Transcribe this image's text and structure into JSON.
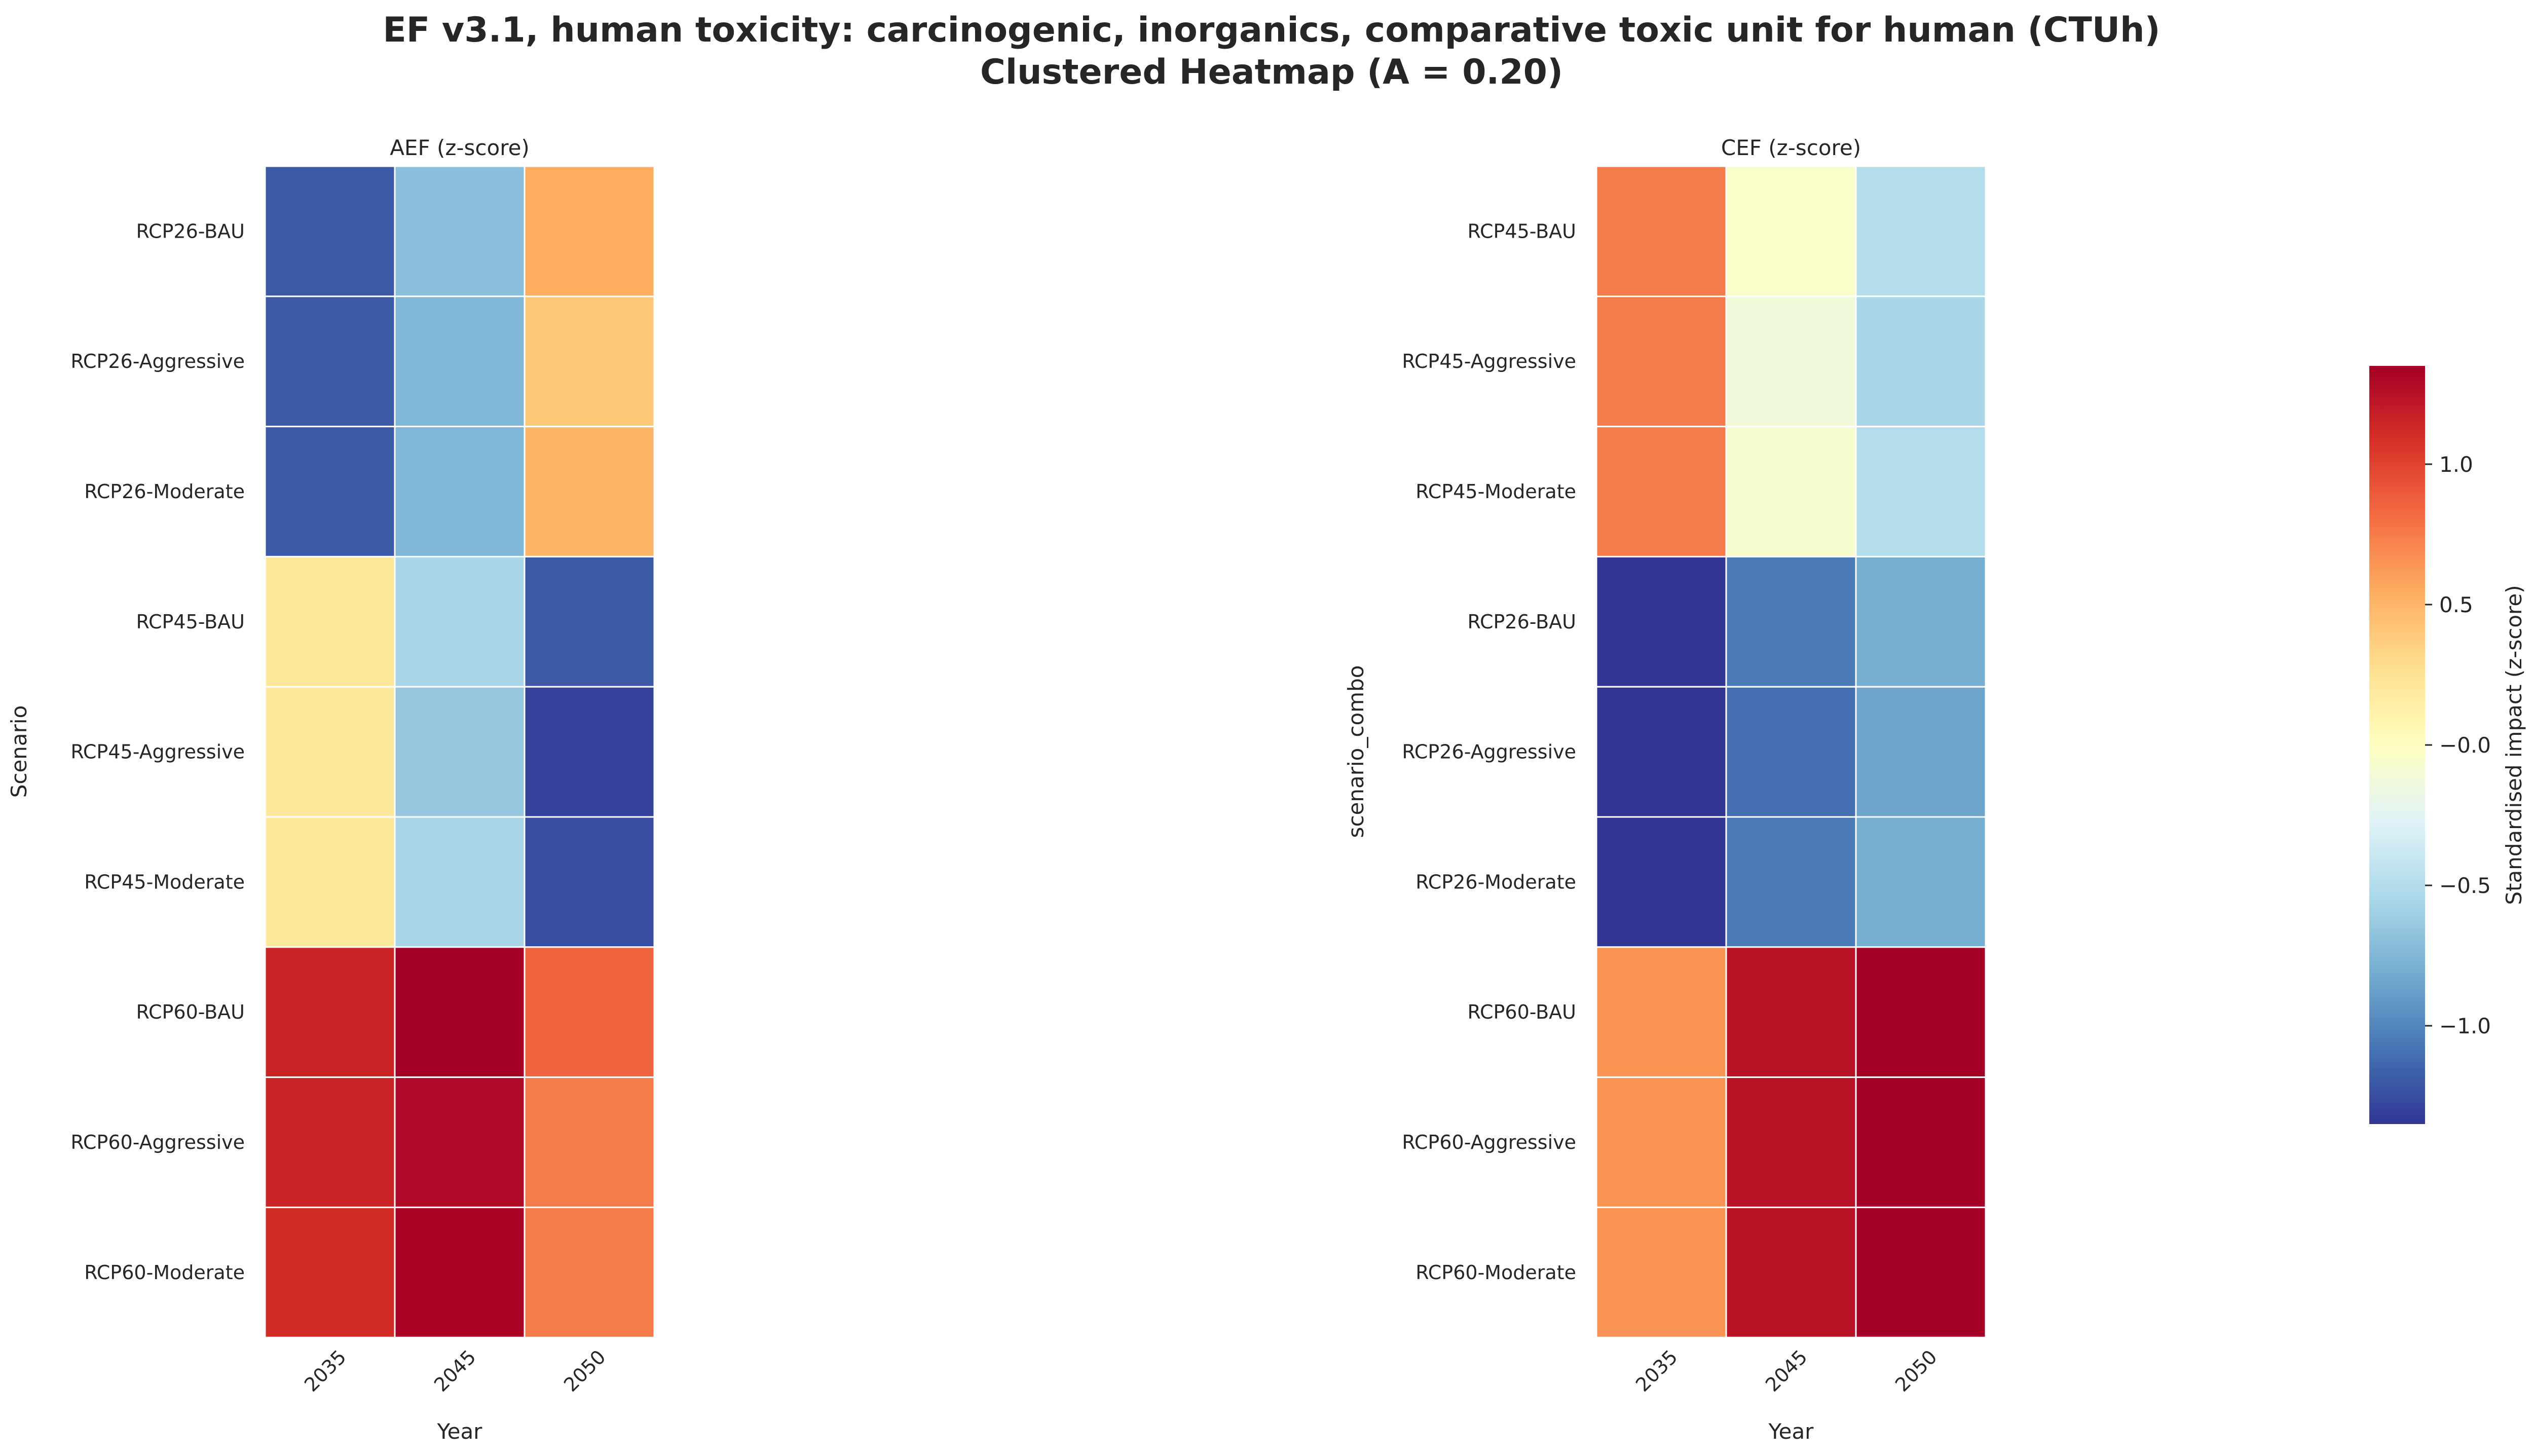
{
  "title_line1": "EF v3.1, human toxicity: carcinogenic, inorganics, comparative toxic unit for human (CTUh)",
  "title_line2": "Clustered Heatmap (A = 0.20)",
  "colorbar": {
    "label": "Standardised impact (z-score)",
    "colormap": "RdYlBu_r",
    "vmin": -1.35,
    "vmax": 1.35,
    "ticks": [
      1.0,
      0.5,
      0.0,
      -0.5,
      -1.0
    ],
    "tick_labels": [
      "1.0",
      "0.5",
      "−0.0",
      "−0.5",
      "−1.0"
    ]
  },
  "chart_data": [
    {
      "type": "heatmap",
      "title": "AEF (z-score)",
      "xlabel": "Year",
      "ylabel": "Scenario",
      "columns": [
        "2035",
        "2045",
        "2050"
      ],
      "rows": [
        "RCP26-BAU",
        "RCP26-Aggressive",
        "RCP26-Moderate",
        "RCP45-BAU",
        "RCP45-Aggressive",
        "RCP45-Moderate",
        "RCP60-BAU",
        "RCP60-Aggressive",
        "RCP60-Moderate"
      ],
      "values": [
        [
          -1.2,
          -0.7,
          0.55
        ],
        [
          -1.2,
          -0.75,
          0.4
        ],
        [
          -1.2,
          -0.75,
          0.5
        ],
        [
          0.2,
          -0.55,
          -1.2
        ],
        [
          0.2,
          -0.65,
          -1.3
        ],
        [
          0.2,
          -0.55,
          -1.25
        ],
        [
          1.15,
          1.35,
          0.85
        ],
        [
          1.15,
          1.3,
          0.75
        ],
        [
          1.1,
          1.33,
          0.75
        ]
      ]
    },
    {
      "type": "heatmap",
      "title": "CEF (z-score)",
      "xlabel": "Year",
      "ylabel": "scenario_combo",
      "columns": [
        "2035",
        "2045",
        "2050"
      ],
      "rows": [
        "RCP45-BAU",
        "RCP45-Aggressive",
        "RCP45-Moderate",
        "RCP26-BAU",
        "RCP26-Aggressive",
        "RCP26-Moderate",
        "RCP60-BAU",
        "RCP60-Aggressive",
        "RCP60-Moderate"
      ],
      "values": [
        [
          0.75,
          -0.05,
          -0.5
        ],
        [
          0.75,
          -0.12,
          -0.55
        ],
        [
          0.75,
          -0.07,
          -0.5
        ],
        [
          -1.35,
          -1.05,
          -0.8
        ],
        [
          -1.35,
          -1.1,
          -0.85
        ],
        [
          -1.35,
          -1.05,
          -0.8
        ],
        [
          0.65,
          1.25,
          1.35
        ],
        [
          0.65,
          1.25,
          1.35
        ],
        [
          0.65,
          1.25,
          1.35
        ]
      ]
    }
  ]
}
